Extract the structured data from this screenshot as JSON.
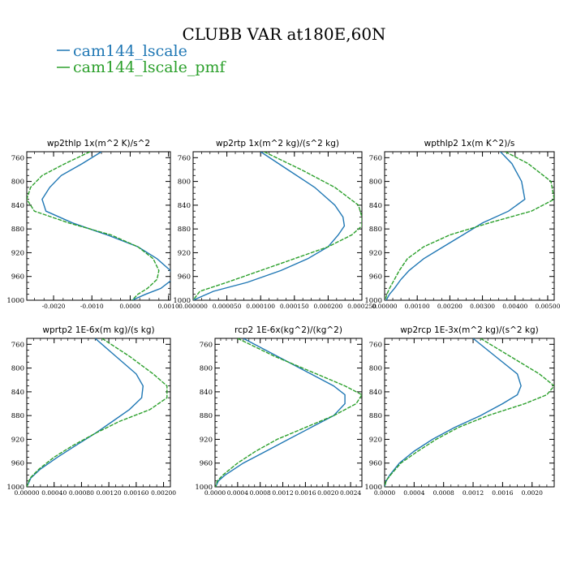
{
  "figure": {
    "title": "CLUBB VAR at180E,60N",
    "legend": [
      {
        "name": "cam144_lscale",
        "color": "#1f77b4"
      },
      {
        "name": "cam144_lscale_pmf",
        "color": "#2ca02c"
      }
    ]
  },
  "chart_data": [
    {
      "type": "line",
      "title": "wp2thlp   1x(m^2 K)/s^2",
      "xlim": [
        -0.0027,
        0.00105
      ],
      "ylim": [
        1000,
        750
      ],
      "yticks": [
        "760",
        "800",
        "840",
        "880",
        "920",
        "960",
        "1000"
      ],
      "ytick_values": [
        760,
        800,
        840,
        880,
        920,
        960,
        1000
      ],
      "xticks": [
        "-0.0020",
        "-0.0010",
        "0.0000",
        "0.0010"
      ],
      "xtick_values": [
        -0.002,
        -0.001,
        0.0,
        0.001
      ],
      "series": [
        {
          "name": "cam144_lscale",
          "y": [
            750,
            770,
            790,
            810,
            830,
            850,
            870,
            890,
            910,
            930,
            950,
            965,
            980,
            990,
            1000
          ],
          "x": [
            -0.00075,
            -0.00125,
            -0.0018,
            -0.0021,
            -0.0023,
            -0.0022,
            -0.0015,
            -0.0006,
            0.0002,
            0.0007,
            0.00105,
            0.0011,
            0.0008,
            0.0004,
            5e-05
          ]
        },
        {
          "name": "cam144_lscale_pmf",
          "y": [
            750,
            770,
            790,
            810,
            830,
            850,
            870,
            890,
            910,
            930,
            950,
            965,
            980,
            990,
            1000
          ],
          "x": [
            -0.00105,
            -0.0017,
            -0.0023,
            -0.0026,
            -0.0027,
            -0.0025,
            -0.0016,
            -0.0005,
            0.0002,
            0.0006,
            0.00075,
            0.0007,
            0.00045,
            0.0002,
            5e-05
          ]
        }
      ]
    },
    {
      "type": "line",
      "title": "wp2rtp   1x(m^2 kg)/(s^2 kg)",
      "xlim": [
        0,
        0.00025
      ],
      "ylim": [
        1000,
        750
      ],
      "yticks": [
        "760",
        "800",
        "840",
        "880",
        "920",
        "960",
        "1000"
      ],
      "ytick_values": [
        760,
        800,
        840,
        880,
        920,
        960,
        1000
      ],
      "xticks": [
        "0.000000",
        "0.000050",
        "0.000100",
        "0.000150",
        "0.000200",
        "0.000250"
      ],
      "xtick_values": [
        0,
        5e-05,
        0.0001,
        0.00015,
        0.0002,
        0.00025
      ],
      "series": [
        {
          "name": "cam144_lscale",
          "y": [
            750,
            780,
            810,
            840,
            860,
            875,
            890,
            910,
            930,
            950,
            970,
            985,
            1000
          ],
          "x": [
            0.0001,
            0.00014,
            0.00018,
            0.00021,
            0.000222,
            0.000224,
            0.000215,
            0.0002,
            0.00017,
            0.00013,
            8e-05,
            3e-05,
            0.0
          ]
        },
        {
          "name": "cam144_lscale_pmf",
          "y": [
            750,
            780,
            810,
            840,
            860,
            875,
            890,
            910,
            930,
            950,
            970,
            985,
            1000
          ],
          "x": [
            0.000105,
            0.00016,
            0.00021,
            0.000245,
            0.00025,
            0.00025,
            0.000235,
            0.0002,
            0.00015,
            0.0001,
            5e-05,
            1e-05,
            0.0
          ]
        }
      ]
    },
    {
      "type": "line",
      "title": "wpthlp2   1x(m K^2)/s",
      "xlim": [
        0,
        0.0052
      ],
      "ylim": [
        1000,
        750
      ],
      "yticks": [
        "760",
        "800",
        "840",
        "880",
        "920",
        "960",
        "1000"
      ],
      "ytick_values": [
        760,
        800,
        840,
        880,
        920,
        960,
        1000
      ],
      "xticks": [
        "0.00000",
        "0.00100",
        "0.00200",
        "0.00300",
        "0.00400",
        "0.00500"
      ],
      "xtick_values": [
        0,
        0.001,
        0.002,
        0.003,
        0.004,
        0.005
      ],
      "series": [
        {
          "name": "cam144_lscale",
          "y": [
            750,
            770,
            800,
            830,
            850,
            870,
            890,
            910,
            930,
            950,
            965,
            980,
            990,
            1000
          ],
          "x": [
            0.00355,
            0.0039,
            0.0042,
            0.0043,
            0.0038,
            0.003,
            0.0024,
            0.0018,
            0.0012,
            0.00075,
            0.0005,
            0.0003,
            0.00015,
            5e-05
          ]
        },
        {
          "name": "cam144_lscale_pmf",
          "y": [
            750,
            770,
            800,
            830,
            850,
            870,
            890,
            910,
            930,
            950,
            965,
            980,
            990,
            1000
          ],
          "x": [
            0.0037,
            0.0044,
            0.0051,
            0.0052,
            0.0045,
            0.0032,
            0.002,
            0.0012,
            0.0007,
            0.00045,
            0.0003,
            0.00015,
            7e-05,
            2e-05
          ]
        }
      ]
    },
    {
      "type": "line",
      "title": "wprtp2   1E-6x(m kg)/(s kg)",
      "xlim": [
        0,
        0.0021
      ],
      "ylim": [
        1000,
        750
      ],
      "yticks": [
        "760",
        "800",
        "840",
        "880",
        "920",
        "960",
        "1000"
      ],
      "ytick_values": [
        760,
        800,
        840,
        880,
        920,
        960,
        1000
      ],
      "xticks": [
        "0.00000",
        "0.00040",
        "0.00080",
        "0.00120",
        "0.00160",
        "0.00200"
      ],
      "xtick_values": [
        0,
        0.0004,
        0.0008,
        0.0012,
        0.0016,
        0.002
      ],
      "series": [
        {
          "name": "cam144_lscale",
          "y": [
            750,
            780,
            810,
            830,
            850,
            870,
            890,
            910,
            930,
            950,
            970,
            985,
            1000
          ],
          "x": [
            0.001,
            0.0013,
            0.0016,
            0.0017,
            0.00168,
            0.0015,
            0.00125,
            0.001,
            0.00072,
            0.00045,
            0.0002,
            6e-05,
            0.0
          ]
        },
        {
          "name": "cam144_lscale_pmf",
          "y": [
            750,
            780,
            810,
            830,
            850,
            870,
            890,
            910,
            930,
            950,
            970,
            985,
            1000
          ],
          "x": [
            0.0011,
            0.0015,
            0.00185,
            0.00205,
            0.00205,
            0.0018,
            0.00135,
            0.001,
            0.00068,
            0.0004,
            0.00018,
            5e-05,
            0.0
          ]
        }
      ]
    },
    {
      "type": "line",
      "title": "rcp2   1E-6x(kg^2)/(kg^2)",
      "xlim": [
        0,
        0.0026
      ],
      "ylim": [
        1000,
        750
      ],
      "yticks": [
        "760",
        "800",
        "840",
        "880",
        "920",
        "960",
        "1000"
      ],
      "ytick_values": [
        760,
        800,
        840,
        880,
        920,
        960,
        1000
      ],
      "xticks": [
        "0.0000",
        "0.0004",
        "0.0008",
        "0.0012",
        "0.0016",
        "0.0020",
        "0.0024"
      ],
      "xtick_values": [
        0,
        0.0004,
        0.0008,
        0.0012,
        0.0016,
        0.002,
        0.0024
      ],
      "series": [
        {
          "name": "cam144_lscale",
          "y": [
            750,
            780,
            810,
            830,
            845,
            860,
            880,
            900,
            920,
            940,
            960,
            980,
            990,
            1000
          ],
          "x": [
            0.0005,
            0.0011,
            0.0017,
            0.0021,
            0.0023,
            0.0023,
            0.0021,
            0.0017,
            0.0013,
            0.0009,
            0.0005,
            0.00018,
            6e-05,
            1e-05
          ]
        },
        {
          "name": "cam144_lscale_pmf",
          "y": [
            750,
            780,
            810,
            830,
            845,
            860,
            880,
            900,
            920,
            940,
            960,
            980,
            990,
            1000
          ],
          "x": [
            0.0004,
            0.00105,
            0.0018,
            0.0023,
            0.0026,
            0.0025,
            0.0021,
            0.0016,
            0.0011,
            0.00072,
            0.0004,
            0.00014,
            4e-05,
            1e-05
          ]
        }
      ]
    },
    {
      "type": "line",
      "title": "wp2rcp   1E-3x(m^2 kg)/(s^2 kg)",
      "xlim": [
        0,
        0.0023
      ],
      "ylim": [
        1000,
        750
      ],
      "yticks": [
        "760",
        "800",
        "840",
        "880",
        "920",
        "960",
        "1000"
      ],
      "ytick_values": [
        760,
        800,
        840,
        880,
        920,
        960,
        1000
      ],
      "xticks": [
        "0.0000",
        "0.0004",
        "0.0008",
        "0.0012",
        "0.0016",
        "0.0020"
      ],
      "xtick_values": [
        0,
        0.0004,
        0.0008,
        0.0012,
        0.0016,
        0.002
      ],
      "series": [
        {
          "name": "cam144_lscale",
          "y": [
            750,
            780,
            810,
            830,
            845,
            860,
            880,
            900,
            920,
            940,
            960,
            980,
            990,
            1000
          ],
          "x": [
            0.0012,
            0.0015,
            0.0018,
            0.00185,
            0.0018,
            0.0016,
            0.0013,
            0.00095,
            0.00065,
            0.0004,
            0.0002,
            7e-05,
            2e-05,
            0.0
          ]
        },
        {
          "name": "cam144_lscale_pmf",
          "y": [
            750,
            780,
            810,
            830,
            845,
            860,
            880,
            900,
            920,
            940,
            960,
            980,
            990,
            1000
          ],
          "x": [
            0.0013,
            0.0017,
            0.0021,
            0.0023,
            0.0022,
            0.0019,
            0.0014,
            0.001,
            0.0007,
            0.00045,
            0.00022,
            8e-05,
            2e-05,
            0.0
          ]
        }
      ]
    }
  ]
}
